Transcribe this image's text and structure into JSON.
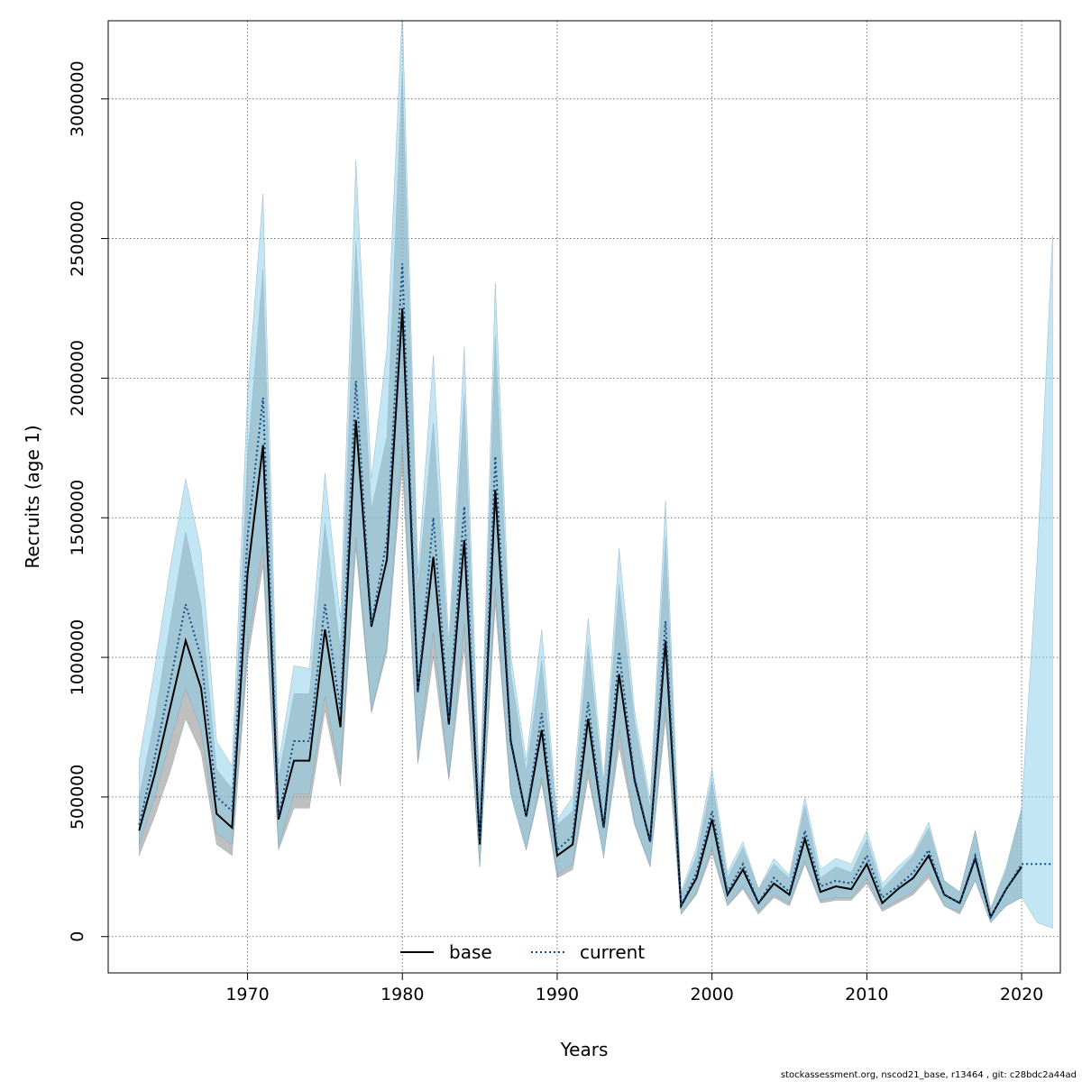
{
  "chart_data": {
    "type": "line",
    "title": "",
    "xlabel": "Years",
    "ylabel": "Recruits (age 1)",
    "xlim": [
      1961,
      2022.5
    ],
    "ylim": [
      -130000,
      3280000
    ],
    "x_ticks": [
      1970,
      1980,
      1990,
      2000,
      2010,
      2020
    ],
    "y_ticks": [
      0,
      500000,
      1000000,
      1500000,
      2000000,
      2500000,
      3000000
    ],
    "grid": true,
    "legend_position": "bottom-center",
    "colors": {
      "base_band": "#808080",
      "current_band": "#87CEEB",
      "base_line": "#000000",
      "current_line": "#104E8B"
    },
    "legend": [
      {
        "label": "base",
        "style": "solid"
      },
      {
        "label": "current",
        "style": "dotted"
      }
    ],
    "x": [
      1963,
      1964,
      1965,
      1966,
      1967,
      1968,
      1969,
      1970,
      1971,
      1972,
      1973,
      1974,
      1975,
      1976,
      1977,
      1978,
      1979,
      1980,
      1981,
      1982,
      1983,
      1984,
      1985,
      1986,
      1987,
      1988,
      1989,
      1990,
      1991,
      1992,
      1993,
      1994,
      1995,
      1996,
      1997,
      1998,
      1999,
      2000,
      2001,
      2002,
      2003,
      2004,
      2005,
      2006,
      2007,
      2008,
      2009,
      2010,
      2011,
      2012,
      2013,
      2014,
      2015,
      2016,
      2017,
      2018,
      2019,
      2020,
      2021,
      2022
    ],
    "series": [
      {
        "name": "base",
        "values": [
          380000,
          580000,
          820000,
          1060000,
          890000,
          440000,
          390000,
          1300000,
          1760000,
          420000,
          630000,
          630000,
          1100000,
          750000,
          1850000,
          1110000,
          1350000,
          2250000,
          880000,
          1360000,
          760000,
          1420000,
          330000,
          1600000,
          700000,
          430000,
          740000,
          290000,
          330000,
          780000,
          390000,
          940000,
          560000,
          340000,
          1060000,
          110000,
          210000,
          420000,
          150000,
          240000,
          120000,
          190000,
          150000,
          350000,
          160000,
          180000,
          170000,
          260000,
          120000,
          170000,
          210000,
          290000,
          150000,
          120000,
          280000,
          70000,
          170000,
          250000,
          null,
          null
        ],
        "lower": [
          290000,
          430000,
          590000,
          780000,
          660000,
          330000,
          290000,
          990000,
          1330000,
          310000,
          460000,
          460000,
          810000,
          540000,
          1390000,
          800000,
          1020000,
          1680000,
          620000,
          1000000,
          560000,
          1030000,
          250000,
          1190000,
          510000,
          310000,
          550000,
          210000,
          240000,
          570000,
          290000,
          680000,
          400000,
          250000,
          780000,
          80000,
          150000,
          300000,
          110000,
          170000,
          80000,
          140000,
          110000,
          260000,
          120000,
          130000,
          130000,
          190000,
          90000,
          120000,
          150000,
          210000,
          110000,
          80000,
          200000,
          50000,
          110000,
          140000,
          null,
          null
        ],
        "upper": [
          500000,
          780000,
          1120000,
          1450000,
          1190000,
          600000,
          530000,
          1720000,
          2390000,
          570000,
          870000,
          870000,
          1480000,
          1030000,
          2490000,
          1530000,
          1790000,
          3100000,
          1250000,
          1840000,
          1020000,
          1940000,
          450000,
          2150000,
          950000,
          590000,
          990000,
          400000,
          450000,
          1050000,
          530000,
          1260000,
          770000,
          460000,
          1430000,
          150000,
          290000,
          560000,
          210000,
          320000,
          170000,
          260000,
          210000,
          470000,
          210000,
          250000,
          230000,
          350000,
          170000,
          230000,
          290000,
          390000,
          200000,
          160000,
          380000,
          100000,
          240000,
          460000,
          null,
          null
        ]
      },
      {
        "name": "current",
        "values": [
          400000,
          640000,
          910000,
          1190000,
          1000000,
          500000,
          450000,
          1430000,
          1930000,
          430000,
          700000,
          700000,
          1190000,
          810000,
          1990000,
          1120000,
          1420000,
          2410000,
          870000,
          1500000,
          780000,
          1540000,
          340000,
          1720000,
          710000,
          430000,
          800000,
          310000,
          360000,
          840000,
          390000,
          1020000,
          570000,
          340000,
          1130000,
          110000,
          230000,
          450000,
          160000,
          260000,
          120000,
          210000,
          160000,
          380000,
          180000,
          200000,
          190000,
          290000,
          140000,
          180000,
          230000,
          310000,
          150000,
          120000,
          290000,
          70000,
          170000,
          260000,
          260000,
          260000
        ],
        "lower": [
          330000,
          500000,
          700000,
          890000,
          740000,
          370000,
          330000,
          1040000,
          1400000,
          320000,
          510000,
          510000,
          860000,
          580000,
          1430000,
          810000,
          1040000,
          1760000,
          630000,
          1090000,
          570000,
          1120000,
          250000,
          1250000,
          510000,
          310000,
          570000,
          220000,
          260000,
          600000,
          280000,
          740000,
          410000,
          250000,
          820000,
          80000,
          160000,
          320000,
          110000,
          180000,
          90000,
          150000,
          120000,
          270000,
          130000,
          140000,
          140000,
          210000,
          100000,
          130000,
          160000,
          230000,
          110000,
          90000,
          200000,
          50000,
          110000,
          140000,
          50000,
          30000
        ],
        "upper": [
          630000,
          960000,
          1320000,
          1640000,
          1380000,
          700000,
          610000,
          1940000,
          2660000,
          620000,
          970000,
          960000,
          1660000,
          1140000,
          2780000,
          1640000,
          2100000,
          3320000,
          1300000,
          2080000,
          1060000,
          2110000,
          490000,
          2340000,
          1010000,
          630000,
          1100000,
          420000,
          500000,
          1140000,
          560000,
          1390000,
          810000,
          490000,
          1560000,
          160000,
          320000,
          600000,
          230000,
          340000,
          170000,
          280000,
          220000,
          500000,
          240000,
          280000,
          260000,
          380000,
          190000,
          250000,
          300000,
          410000,
          200000,
          160000,
          380000,
          100000,
          250000,
          460000,
          1350000,
          2510000
        ]
      }
    ]
  },
  "footer": "stockassessment.org, nscod21_base, r13464 , git: c28bdc2a44ad"
}
